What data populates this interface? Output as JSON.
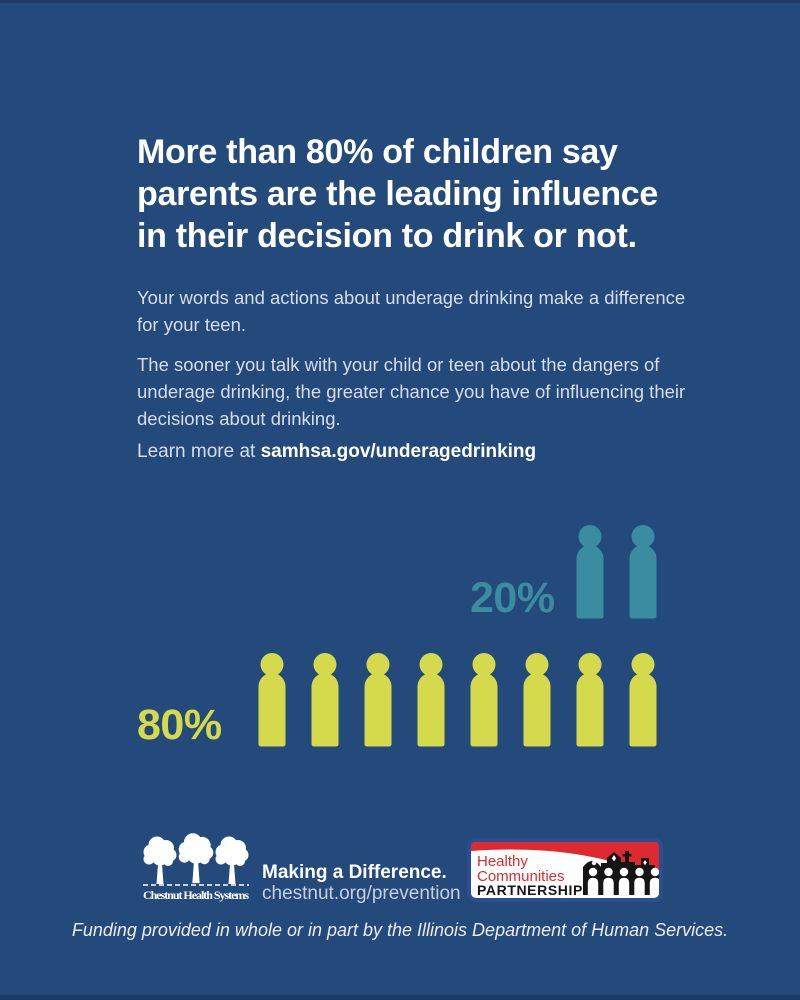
{
  "colors": {
    "background": "#24497B",
    "border_strip": "#1B3A66",
    "headline_text": "#FFFFFF",
    "body_text": "#D6DDE8",
    "teal": "#3A8CA0",
    "yellow_green": "#D5DA4C",
    "logo_red": "#DD2A31",
    "logo_border_blue": "#2C4E90"
  },
  "headline": {
    "lines": [
      "More than 80% of children say",
      "parents are the leading influence",
      "in their decision to drink or not."
    ]
  },
  "body": {
    "paragraph1_lines": [
      "Your words and actions about underage drinking make a difference",
      "for your teen."
    ],
    "paragraph2_lines": [
      "The sooner you talk with your child or teen about the dangers of",
      "underage drinking, the greater chance you have of influencing their",
      "decisions about drinking."
    ]
  },
  "learn_more": {
    "prefix": "Learn more at ",
    "url": "samhsa.gov/underagedrinking"
  },
  "chart_data": {
    "type": "pictogram",
    "unit_per_icon_percent": 10,
    "legend_position": "left-of-rows",
    "series": [
      {
        "label": "20%",
        "value": 20,
        "icons": 2,
        "color": "#3A8CA0"
      },
      {
        "label": "80%",
        "value": 80,
        "icons": 8,
        "color": "#D5DA4C"
      }
    ]
  },
  "footer": {
    "chestnut_org": "Chestnut Health Systems",
    "tagline": "Making a Difference.",
    "website": "chestnut.org/prevention",
    "hcp_logo": {
      "word1": "Healthy",
      "word2": "Communities",
      "word3": "PARTNERSHIP"
    },
    "funding_note": "Funding provided in whole or in part by the Illinois Department of Human Services."
  }
}
